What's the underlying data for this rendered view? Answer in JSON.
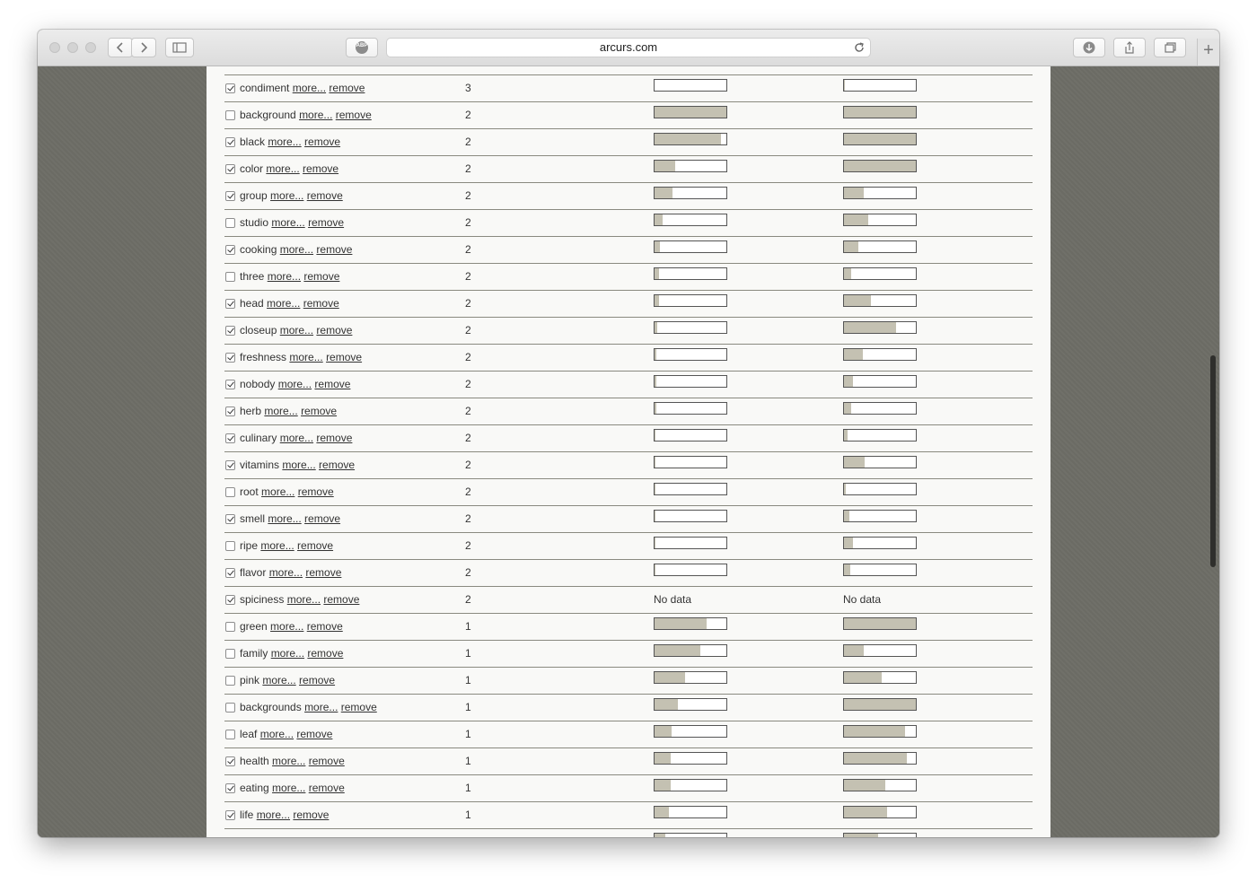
{
  "browser": {
    "url": "arcurs.com",
    "adblock_label": "ABP",
    "new_tab_label": "+"
  },
  "table": {
    "more_label": "more...",
    "remove_label": "remove",
    "no_data_label": "No data",
    "rows": [
      {
        "keyword": "",
        "checked": false,
        "count": "",
        "bar1": null,
        "bar2": null
      },
      {
        "keyword": "condiment",
        "checked": true,
        "count": "3",
        "bar1": 0.0,
        "bar2": 0.01
      },
      {
        "keyword": "background",
        "checked": false,
        "count": "2",
        "bar1": 1.0,
        "bar2": 1.0
      },
      {
        "keyword": "black",
        "checked": true,
        "count": "2",
        "bar1": 0.92,
        "bar2": 1.0
      },
      {
        "keyword": "color",
        "checked": true,
        "count": "2",
        "bar1": 0.29,
        "bar2": 1.0
      },
      {
        "keyword": "group",
        "checked": true,
        "count": "2",
        "bar1": 0.25,
        "bar2": 0.27
      },
      {
        "keyword": "studio",
        "checked": false,
        "count": "2",
        "bar1": 0.11,
        "bar2": 0.34
      },
      {
        "keyword": "cooking",
        "checked": true,
        "count": "2",
        "bar1": 0.07,
        "bar2": 0.2
      },
      {
        "keyword": "three",
        "checked": false,
        "count": "2",
        "bar1": 0.06,
        "bar2": 0.1
      },
      {
        "keyword": "head",
        "checked": true,
        "count": "2",
        "bar1": 0.06,
        "bar2": 0.38
      },
      {
        "keyword": "closeup",
        "checked": true,
        "count": "2",
        "bar1": 0.04,
        "bar2": 0.73
      },
      {
        "keyword": "freshness",
        "checked": true,
        "count": "2",
        "bar1": 0.02,
        "bar2": 0.26
      },
      {
        "keyword": "nobody",
        "checked": true,
        "count": "2",
        "bar1": 0.02,
        "bar2": 0.12
      },
      {
        "keyword": "herb",
        "checked": true,
        "count": "2",
        "bar1": 0.02,
        "bar2": 0.1
      },
      {
        "keyword": "culinary",
        "checked": true,
        "count": "2",
        "bar1": 0.01,
        "bar2": 0.05
      },
      {
        "keyword": "vitamins",
        "checked": true,
        "count": "2",
        "bar1": 0.01,
        "bar2": 0.29
      },
      {
        "keyword": "root",
        "checked": false,
        "count": "2",
        "bar1": 0.01,
        "bar2": 0.03
      },
      {
        "keyword": "smell",
        "checked": true,
        "count": "2",
        "bar1": 0.01,
        "bar2": 0.08
      },
      {
        "keyword": "ripe",
        "checked": false,
        "count": "2",
        "bar1": 0.01,
        "bar2": 0.13
      },
      {
        "keyword": "flavor",
        "checked": true,
        "count": "2",
        "bar1": 0.01,
        "bar2": 0.09
      },
      {
        "keyword": "spiciness",
        "checked": true,
        "count": "2",
        "bar1": null,
        "bar2": null,
        "no_data": true
      },
      {
        "keyword": "green",
        "checked": false,
        "count": "1",
        "bar1": 0.73,
        "bar2": 1.0
      },
      {
        "keyword": "family",
        "checked": false,
        "count": "1",
        "bar1": 0.64,
        "bar2": 0.27
      },
      {
        "keyword": "pink",
        "checked": false,
        "count": "1",
        "bar1": 0.43,
        "bar2": 0.52
      },
      {
        "keyword": "backgrounds",
        "checked": false,
        "count": "1",
        "bar1": 0.33,
        "bar2": 1.0
      },
      {
        "keyword": "leaf",
        "checked": false,
        "count": "1",
        "bar1": 0.24,
        "bar2": 0.85
      },
      {
        "keyword": "health",
        "checked": true,
        "count": "1",
        "bar1": 0.23,
        "bar2": 0.87
      },
      {
        "keyword": "eating",
        "checked": true,
        "count": "1",
        "bar1": 0.22,
        "bar2": 0.57
      },
      {
        "keyword": "life",
        "checked": true,
        "count": "1",
        "bar1": 0.2,
        "bar2": 0.6
      },
      {
        "keyword": "",
        "checked": true,
        "count": "",
        "bar1": 0.15,
        "bar2": 0.47
      }
    ]
  }
}
